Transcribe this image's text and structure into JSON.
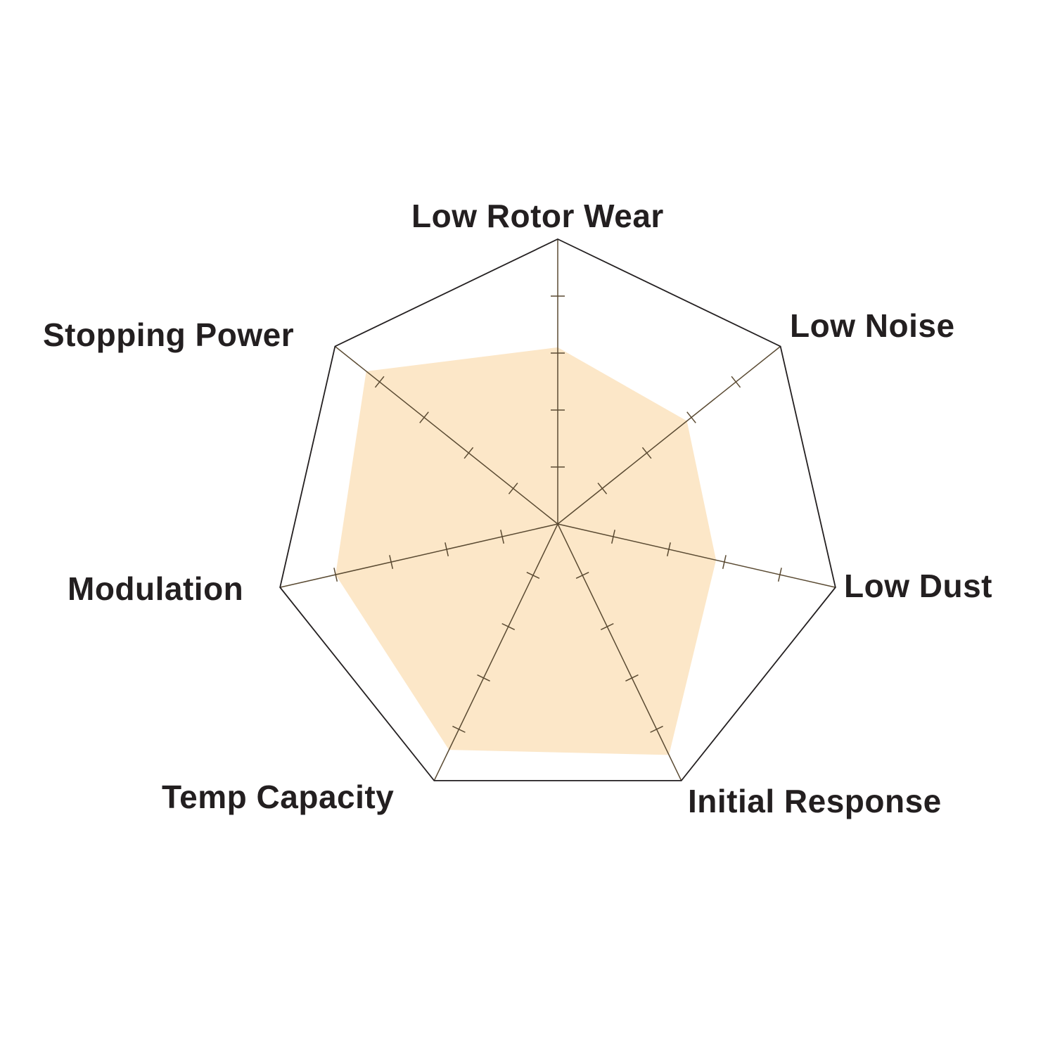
{
  "chart_data": {
    "type": "radar",
    "title": "",
    "categories": [
      "Low Rotor Wear",
      "Low Noise",
      "Low Dust",
      "Initial Response",
      "Temp Capacity",
      "Modulation",
      "Stopping Power"
    ],
    "values": [
      3.1,
      2.9,
      2.85,
      4.5,
      4.4,
      4.0,
      4.3
    ],
    "range": [
      0,
      5
    ],
    "ticks_per_axis": 5,
    "grid": "outer polygon only",
    "legend": "none",
    "colors": {
      "fill": "#fce7c8",
      "outline": "#231f20",
      "spoke": "#5a4a32",
      "text": "#231f20"
    }
  }
}
